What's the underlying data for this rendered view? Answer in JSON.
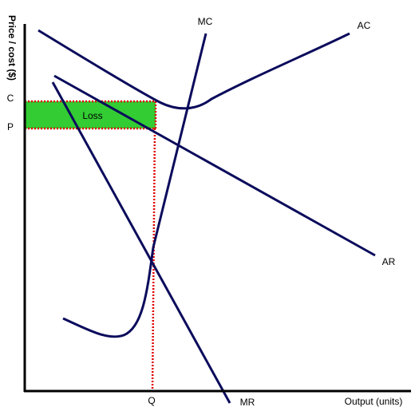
{
  "axes": {
    "y_label": "Price / cost ($)",
    "x_label": "Output (units)"
  },
  "levels": {
    "c": "C",
    "p": "P",
    "q": "Q"
  },
  "curves": {
    "mc": "MC",
    "ac": "AC",
    "ar": "AR",
    "mr": "MR"
  },
  "area": {
    "label": "Loss"
  }
}
